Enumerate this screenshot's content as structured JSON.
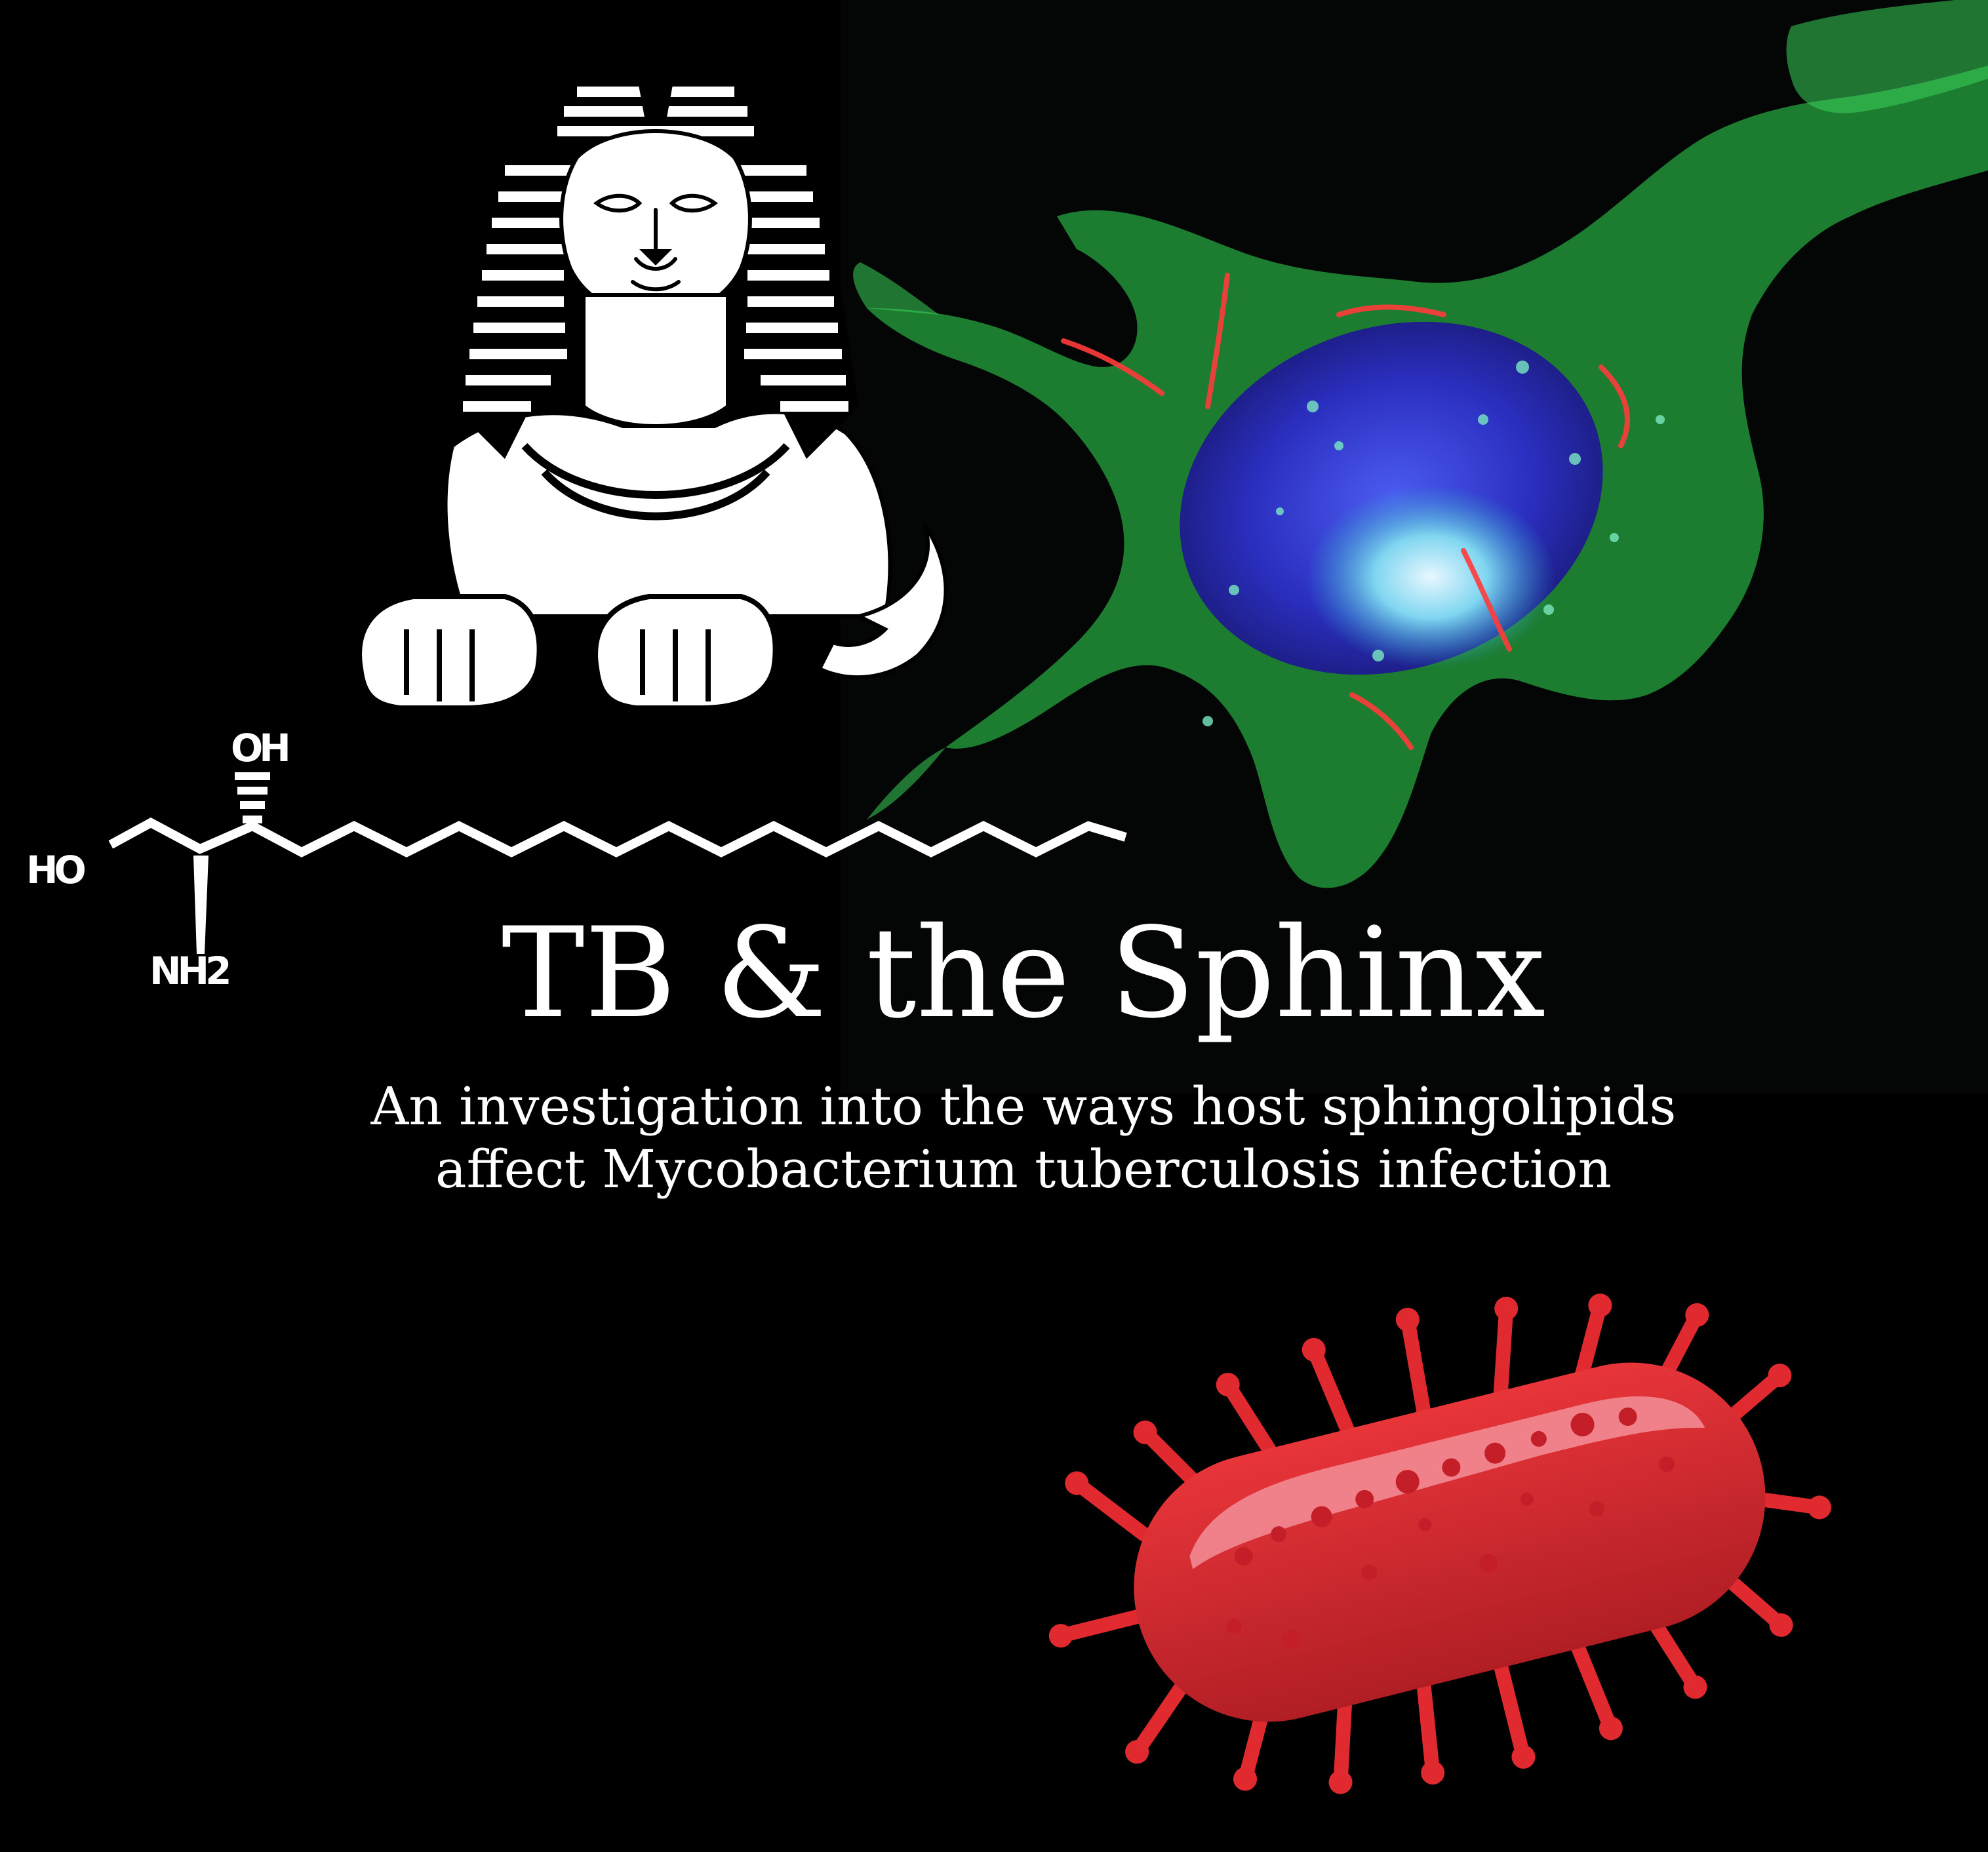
{
  "title": "TB & the Sphinx",
  "subtitle": {
    "line1": "An investigation into the ways host sphingolipids",
    "line2": "affect Mycobacterium tuberculosis infection"
  },
  "molecule": {
    "oh_label": "OH",
    "ho_label": "HO",
    "nh2_label": "NH2"
  },
  "colors": {
    "background": "#000000",
    "text": "#ffffff",
    "bacterium_red": "#d42a2d",
    "micrograph_green": "#3bd15a",
    "micrograph_blue": "#2a2ad0",
    "micrograph_red": "#ff3b3b"
  },
  "icons": {
    "sphinx": "sphinx-illustration",
    "cell_image": "fluorescence-micrograph",
    "bacterium": "rod-bacterium-illustration",
    "molecule": "sphingosine-structure"
  }
}
